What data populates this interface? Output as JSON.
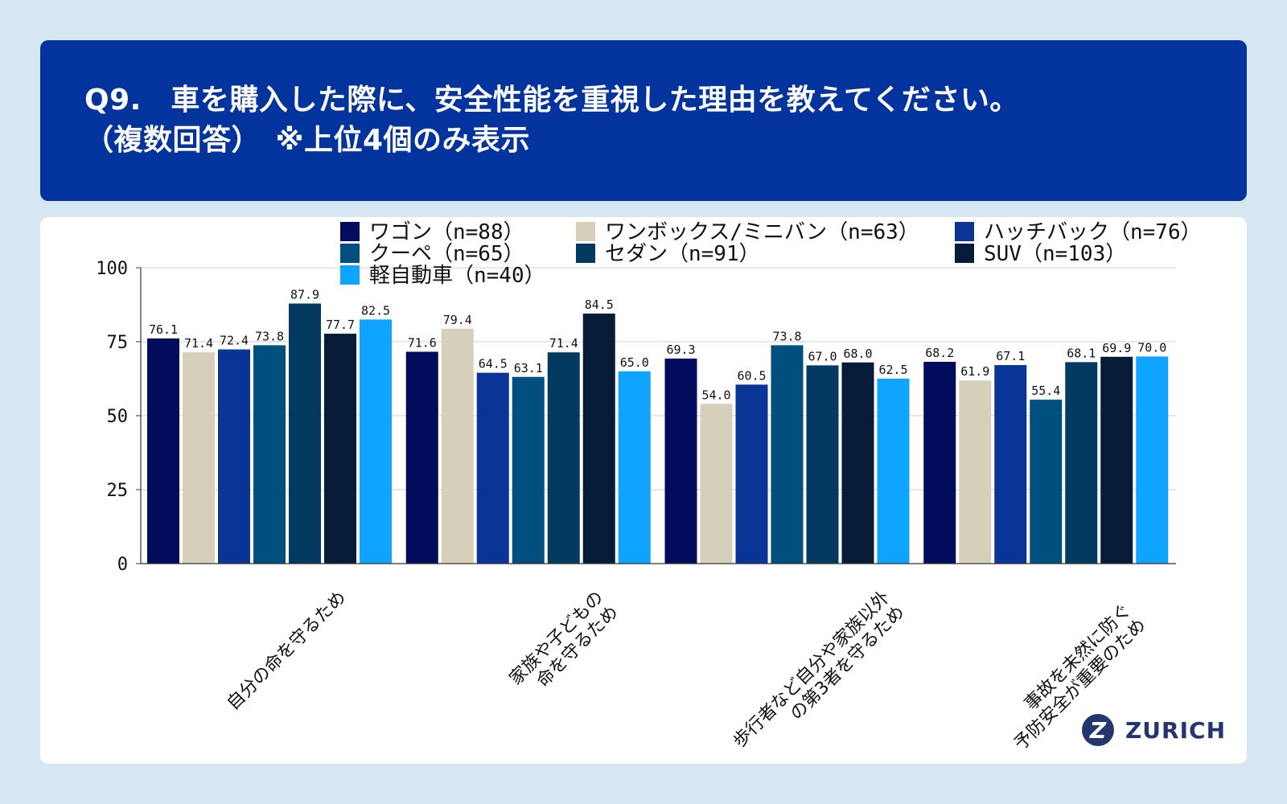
{
  "header": {
    "title_line1": "Q9.　車を購入した際に、安全性能を重視した理由を教えてください。",
    "title_line2": "（複数回答）　※上位4個のみ表示"
  },
  "brand": {
    "name": "ZURICH",
    "mark": "Z"
  },
  "chart_data": {
    "type": "bar",
    "title": "Q9.　車を購入した際に、安全性能を重視した理由を教えてください。（複数回答）　※上位4個のみ表示",
    "categories": [
      "自分の命を守るため",
      "家族や子どもの命を守るため",
      "歩行者など自分や家族以外の第3者を守るため",
      "事故を未然に防ぐ予防安全が重要のため"
    ],
    "category_labels": [
      [
        "自分の命を守るため"
      ],
      [
        "家族や子どもの",
        "命を守るため"
      ],
      [
        "歩行者など自分や家族以外",
        "の第3者を守るため"
      ],
      [
        "事故を未然に防ぐ",
        "予防安全が重要のため"
      ]
    ],
    "series": [
      {
        "name": "ワゴン（n=88）",
        "color": "#020c5c",
        "values": [
          76.1,
          71.6,
          69.3,
          68.2
        ]
      },
      {
        "name": "ワンボックス/ミニバン（n=63）",
        "color": "#d6cfb9",
        "values": [
          71.4,
          79.4,
          54.0,
          61.9
        ]
      },
      {
        "name": "ハッチバック（n=76）",
        "color": "#0a3597",
        "values": [
          72.4,
          64.5,
          60.5,
          67.1
        ]
      },
      {
        "name": "クーペ（n=65）",
        "color": "#004f7f",
        "values": [
          73.8,
          63.1,
          73.8,
          55.4
        ]
      },
      {
        "name": "セダン（n=91）",
        "color": "#023a62",
        "values": [
          87.9,
          71.4,
          67.0,
          68.1
        ]
      },
      {
        "name": "SUV（n=103）",
        "color": "#051b38",
        "values": [
          77.7,
          84.5,
          68.0,
          69.9
        ]
      },
      {
        "name": "軽自動車（n=40）",
        "color": "#0ea4ff",
        "values": [
          82.5,
          65.0,
          62.5,
          70.0
        ]
      }
    ],
    "value_labels": [
      [
        "76.1",
        "71.6",
        "69.3",
        "68.2"
      ],
      [
        "71.4",
        "79.4",
        "54.0",
        "61.9"
      ],
      [
        "72.4",
        "64.5",
        "60.5",
        "67.1"
      ],
      [
        "73.8",
        "63.1",
        "73.8",
        "55.4"
      ],
      [
        "87.9",
        "71.4",
        "67.0",
        "68.1"
      ],
      [
        "77.7",
        "84.5",
        "68.0",
        "69.9"
      ],
      [
        "82.5",
        "65.0",
        "62.5",
        "70.0"
      ]
    ],
    "y_ticks": [
      0,
      25,
      50,
      75,
      100
    ],
    "y_tick_labels": [
      "0",
      "25",
      "50",
      "75",
      "100"
    ],
    "ylim": [
      0,
      100
    ],
    "xlabel": "",
    "ylabel": "",
    "grid": true,
    "legend": "top"
  }
}
